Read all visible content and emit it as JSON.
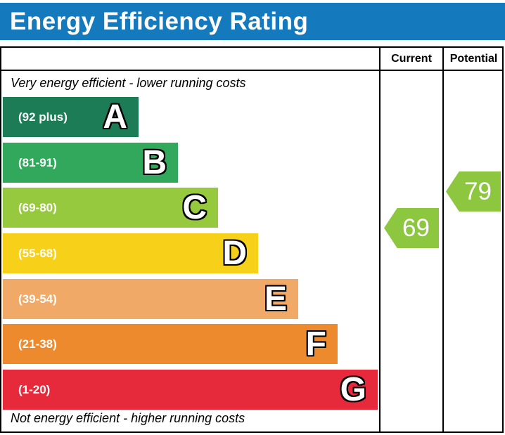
{
  "header": {
    "title": "Energy Efficiency Rating",
    "title_bg": "#1479BD",
    "columns": [
      "Current",
      "Potential"
    ]
  },
  "captions": {
    "top": "Very energy efficient - lower running costs",
    "bottom": "Not energy efficient - higher running costs"
  },
  "chart_data": {
    "type": "bar",
    "orientation": "horizontal",
    "title": "Energy Efficiency Rating",
    "columns": [
      "Current",
      "Potential"
    ],
    "bands": [
      {
        "letter": "A",
        "range": "(92 plus)",
        "min": 92,
        "max": 100,
        "color": "#1C7C55",
        "width_pct": 36.2
      },
      {
        "letter": "B",
        "range": "(81-91)",
        "min": 81,
        "max": 91,
        "color": "#31A85B",
        "width_pct": 46.7
      },
      {
        "letter": "C",
        "range": "(69-80)",
        "min": 69,
        "max": 80,
        "color": "#96C93D",
        "width_pct": 57.4
      },
      {
        "letter": "D",
        "range": "(55-68)",
        "min": 55,
        "max": 68,
        "color": "#F7D01A",
        "width_pct": 68.1
      },
      {
        "letter": "E",
        "range": "(39-54)",
        "min": 39,
        "max": 54,
        "color": "#F1A967",
        "width_pct": 78.8
      },
      {
        "letter": "F",
        "range": "(21-38)",
        "min": 21,
        "max": 38,
        "color": "#EE8A2E",
        "width_pct": 89.3
      },
      {
        "letter": "G",
        "range": "(1-20)",
        "min": 1,
        "max": 20,
        "color": "#E62A3C",
        "width_pct": 100
      }
    ],
    "ratings": [
      {
        "column": "Current",
        "value": 69,
        "band": "C",
        "color": "#8DC63F"
      },
      {
        "column": "Potential",
        "value": 79,
        "band": "C",
        "color": "#8DC63F"
      }
    ],
    "annotations": [
      "Very energy efficient - lower running costs",
      "Not energy efficient - higher running costs"
    ]
  }
}
